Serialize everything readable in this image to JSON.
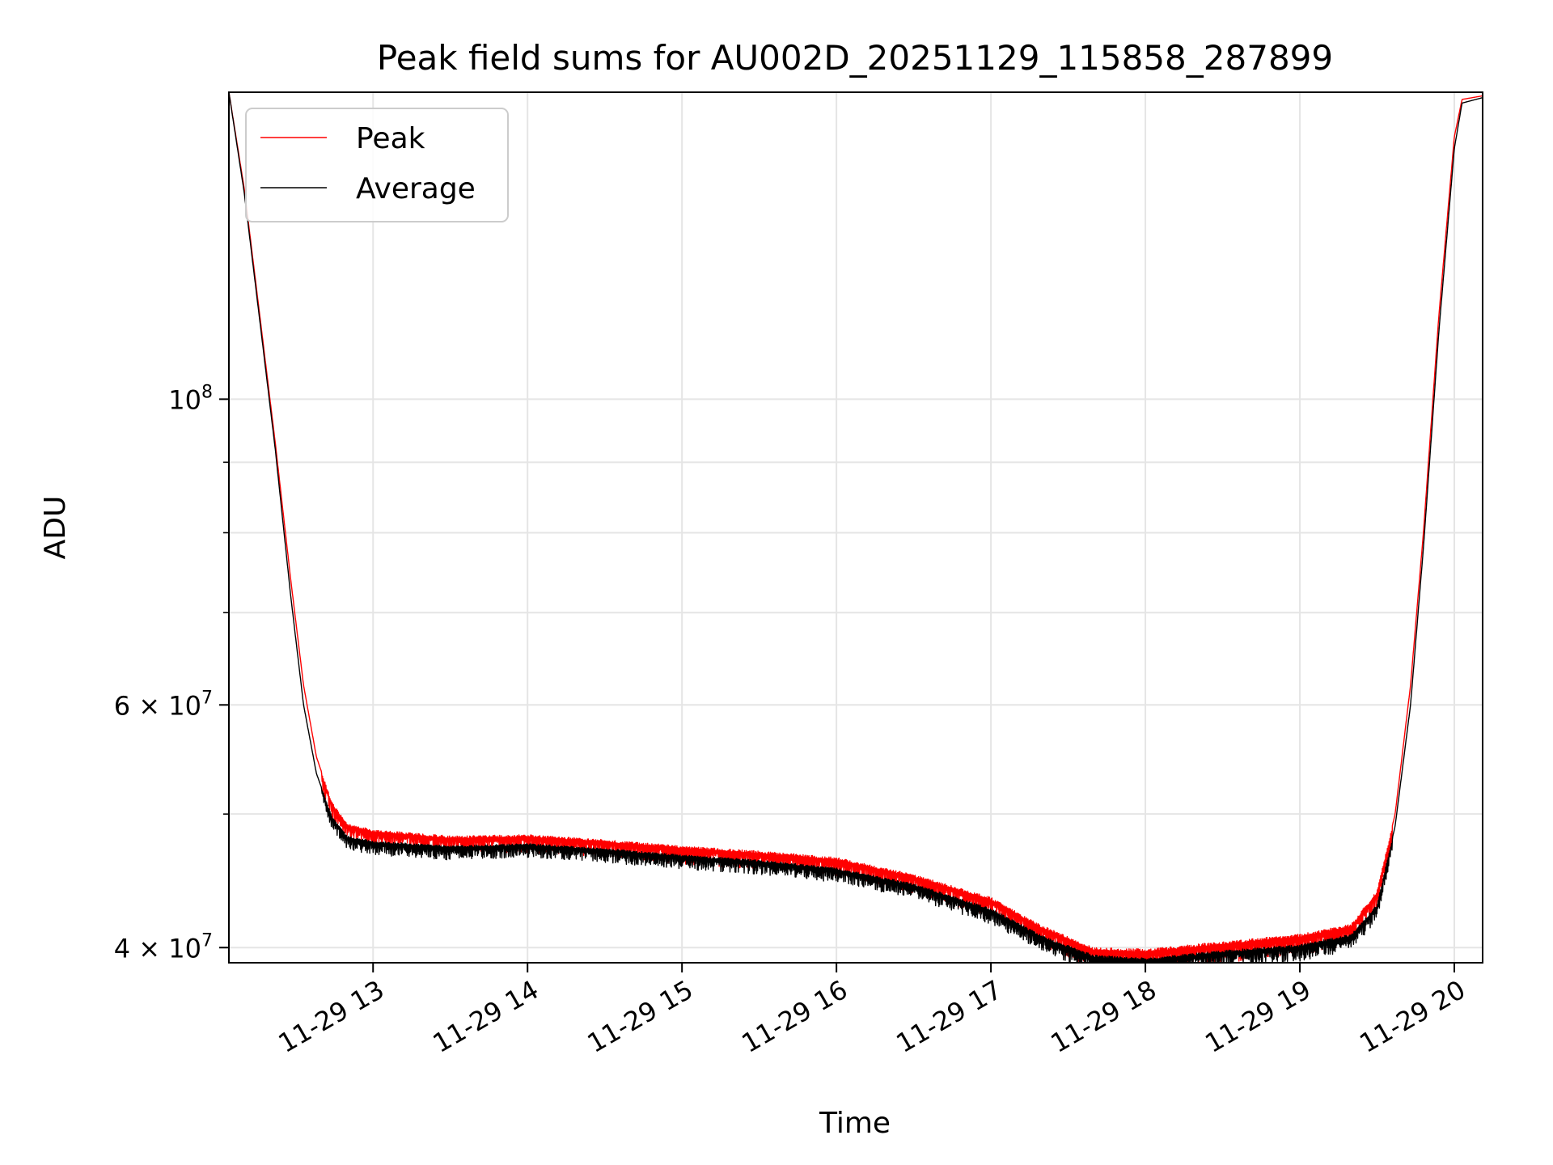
{
  "chart_data": {
    "type": "line",
    "title": "Peak field sums for AU002D_20251129_115858_287899",
    "xlabel": "Time",
    "ylabel": "ADU",
    "y_scale": "log",
    "grid": true,
    "legend_position": "top-left",
    "xlim": [
      "2025-11-29 12:04",
      "2025-11-29 20:11"
    ],
    "ylim": [
      39000000,
      167000000
    ],
    "x_ticks": [
      {
        "value": "2025-11-29 13:00",
        "label": "11-29 13"
      },
      {
        "value": "2025-11-29 14:00",
        "label": "11-29 14"
      },
      {
        "value": "2025-11-29 15:00",
        "label": "11-29 15"
      },
      {
        "value": "2025-11-29 16:00",
        "label": "11-29 16"
      },
      {
        "value": "2025-11-29 17:00",
        "label": "11-29 17"
      },
      {
        "value": "2025-11-29 18:00",
        "label": "11-29 18"
      },
      {
        "value": "2025-11-29 19:00",
        "label": "11-29 19"
      },
      {
        "value": "2025-11-29 20:00",
        "label": "11-29 20"
      }
    ],
    "y_ticks_major": [
      {
        "value": 40000000,
        "label": "4 × 10",
        "exp": "7"
      },
      {
        "value": 60000000,
        "label": "6 × 10",
        "exp": "7"
      },
      {
        "value": 100000000,
        "label": "10",
        "exp": "8"
      }
    ],
    "y_ticks_minor": [
      50000000,
      70000000,
      80000000,
      90000000,
      200000000
    ],
    "series": [
      {
        "name": "Peak",
        "color": "#ff0000",
        "jitter": 1400000,
        "points": [
          [
            "2025-11-29 12:04",
            167000000
          ],
          [
            "2025-11-29 12:10",
            142000000
          ],
          [
            "2025-11-29 12:16",
            115000000
          ],
          [
            "2025-11-29 12:22",
            93000000
          ],
          [
            "2025-11-29 12:28",
            74000000
          ],
          [
            "2025-11-29 12:33",
            62000000
          ],
          [
            "2025-11-29 12:38",
            55000000
          ],
          [
            "2025-11-29 12:44",
            51000000
          ],
          [
            "2025-11-29 12:50",
            49200000
          ],
          [
            "2025-11-29 13:00",
            48700000
          ],
          [
            "2025-11-29 13:30",
            48200000
          ],
          [
            "2025-11-29 14:00",
            48300000
          ],
          [
            "2025-11-29 14:30",
            47900000
          ],
          [
            "2025-11-29 15:00",
            47400000
          ],
          [
            "2025-11-29 15:30",
            47000000
          ],
          [
            "2025-11-29 16:00",
            46500000
          ],
          [
            "2025-11-29 16:30",
            45200000
          ],
          [
            "2025-11-29 17:00",
            43500000
          ],
          [
            "2025-11-29 17:20",
            41500000
          ],
          [
            "2025-11-29 17:40",
            40000000
          ],
          [
            "2025-11-29 18:00",
            39900000
          ],
          [
            "2025-11-29 18:30",
            40400000
          ],
          [
            "2025-11-29 19:00",
            40900000
          ],
          [
            "2025-11-29 19:20",
            41600000
          ],
          [
            "2025-11-29 19:30",
            44000000
          ],
          [
            "2025-11-29 19:37",
            50000000
          ],
          [
            "2025-11-29 19:43",
            62000000
          ],
          [
            "2025-11-29 19:48",
            80000000
          ],
          [
            "2025-11-29 19:54",
            115000000
          ],
          [
            "2025-11-29 20:00",
            155000000
          ],
          [
            "2025-11-29 20:03",
            165000000
          ],
          [
            "2025-11-29 20:11",
            166000000
          ]
        ]
      },
      {
        "name": "Average",
        "color": "#000000",
        "jitter": 1100000,
        "points": [
          [
            "2025-11-29 12:04",
            167000000
          ],
          [
            "2025-11-29 12:10",
            141000000
          ],
          [
            "2025-11-29 12:16",
            114000000
          ],
          [
            "2025-11-29 12:22",
            92000000
          ],
          [
            "2025-11-29 12:28",
            72000000
          ],
          [
            "2025-11-29 12:33",
            60000000
          ],
          [
            "2025-11-29 12:38",
            53500000
          ],
          [
            "2025-11-29 12:44",
            49800000
          ],
          [
            "2025-11-29 12:50",
            48200000
          ],
          [
            "2025-11-29 13:00",
            47800000
          ],
          [
            "2025-11-29 13:30",
            47400000
          ],
          [
            "2025-11-29 14:00",
            47600000
          ],
          [
            "2025-11-29 14:30",
            47200000
          ],
          [
            "2025-11-29 15:00",
            46700000
          ],
          [
            "2025-11-29 15:30",
            46300000
          ],
          [
            "2025-11-29 16:00",
            45700000
          ],
          [
            "2025-11-29 16:30",
            44500000
          ],
          [
            "2025-11-29 17:00",
            42700000
          ],
          [
            "2025-11-29 17:20",
            40800000
          ],
          [
            "2025-11-29 17:40",
            39500000
          ],
          [
            "2025-11-29 18:00",
            39300000
          ],
          [
            "2025-11-29 18:30",
            39800000
          ],
          [
            "2025-11-29 19:00",
            40200000
          ],
          [
            "2025-11-29 19:20",
            40900000
          ],
          [
            "2025-11-29 19:30",
            43000000
          ],
          [
            "2025-11-29 19:37",
            49000000
          ],
          [
            "2025-11-29 19:43",
            60000000
          ],
          [
            "2025-11-29 19:48",
            78000000
          ],
          [
            "2025-11-29 19:54",
            112000000
          ],
          [
            "2025-11-29 20:00",
            152000000
          ],
          [
            "2025-11-29 20:03",
            164000000
          ],
          [
            "2025-11-29 20:11",
            165500000
          ]
        ]
      }
    ]
  }
}
